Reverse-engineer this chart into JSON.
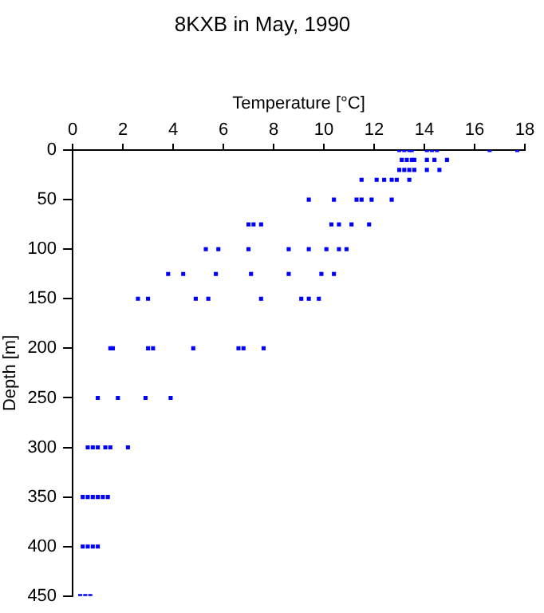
{
  "chart_data": {
    "type": "scatter",
    "title": "8KXB in May, 1990",
    "xlabel": "Temperature [°C]",
    "ylabel": "Depth [m]",
    "xlim": [
      0,
      18
    ],
    "xticks": [
      0,
      2,
      4,
      6,
      8,
      10,
      12,
      14,
      16,
      18
    ],
    "ylim": [
      450,
      0
    ],
    "yticks": [
      0,
      50,
      100,
      150,
      200,
      250,
      300,
      350,
      400,
      450
    ],
    "grid": false,
    "legend": false,
    "marker": "square",
    "series": [
      {
        "color": "#0000ff",
        "x": [
          13.0,
          13.2,
          13.4,
          13.5,
          14.1,
          14.3,
          14.5,
          16.6,
          17.7,
          13.1,
          13.3,
          13.5,
          13.6,
          14.1,
          14.4,
          14.9,
          13.0,
          13.2,
          13.4,
          13.6,
          14.1,
          14.6,
          11.5,
          12.1,
          12.4,
          12.7,
          12.9,
          13.4,
          9.4,
          10.4,
          11.3,
          11.5,
          11.9,
          12.7,
          7.0,
          7.2,
          7.5,
          10.3,
          10.6,
          11.1,
          11.8,
          5.3,
          5.8,
          7.0,
          8.6,
          9.4,
          10.1,
          10.6,
          10.9,
          3.8,
          4.4,
          5.7,
          7.1,
          8.6,
          9.9,
          10.4,
          2.6,
          3.0,
          4.9,
          5.4,
          7.5,
          9.1,
          9.4,
          9.8,
          1.5,
          1.6,
          3.0,
          3.2,
          4.8,
          6.6,
          6.8,
          7.6,
          1.0,
          1.8,
          2.9,
          3.9,
          0.6,
          0.8,
          1.0,
          1.3,
          1.5,
          2.2,
          0.4,
          0.6,
          0.8,
          1.0,
          1.2,
          1.4,
          0.4,
          0.6,
          0.8,
          1.0,
          0.3,
          0.5,
          0.7
        ],
        "values": [
          0,
          0,
          0,
          0,
          0,
          0,
          0,
          0,
          0,
          10,
          10,
          10,
          10,
          10,
          10,
          10,
          20,
          20,
          20,
          20,
          20,
          20,
          30,
          30,
          30,
          30,
          30,
          30,
          50,
          50,
          50,
          50,
          50,
          50,
          75,
          75,
          75,
          75,
          75,
          75,
          75,
          100,
          100,
          100,
          100,
          100,
          100,
          100,
          100,
          125,
          125,
          125,
          125,
          125,
          125,
          125,
          150,
          150,
          150,
          150,
          150,
          150,
          150,
          150,
          200,
          200,
          200,
          200,
          200,
          200,
          200,
          200,
          250,
          250,
          250,
          250,
          300,
          300,
          300,
          300,
          300,
          300,
          350,
          350,
          350,
          350,
          350,
          350,
          400,
          400,
          400,
          400,
          450,
          450,
          450
        ]
      }
    ]
  }
}
